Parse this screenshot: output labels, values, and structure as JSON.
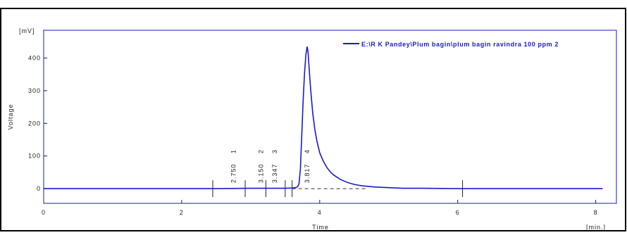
{
  "chart_data": {
    "type": "line",
    "title": "",
    "xlabel": "Time",
    "ylabel": "Voltage",
    "x_unit": "[min.]",
    "y_unit": "[mV]",
    "xlim": [
      0,
      8.3
    ],
    "ylim": [
      -45,
      485
    ],
    "x_ticks": [
      0,
      2,
      4,
      6,
      8
    ],
    "y_ticks": [
      0,
      100,
      200,
      300,
      400
    ],
    "x_tick_labels": [
      "0",
      "2",
      "4",
      "6",
      "8"
    ],
    "y_tick_labels": [
      "0",
      "100",
      "200",
      "300",
      "400"
    ],
    "grid": false,
    "legend_position": "top-right",
    "series": [
      {
        "name": "E:\\R K Pandey\\Plum bagin\\plum bagin ravindra 100 ppm 2",
        "color": "#1a1ad0",
        "x": [
          0.0,
          0.5,
          1.0,
          1.5,
          2.0,
          2.5,
          3.0,
          3.3,
          3.5,
          3.6,
          3.65,
          3.68,
          3.7,
          3.72,
          3.74,
          3.76,
          3.78,
          3.8,
          3.817,
          3.83,
          3.85,
          3.87,
          3.9,
          3.93,
          3.96,
          4.0,
          4.05,
          4.1,
          4.15,
          4.2,
          4.3,
          4.4,
          4.5,
          4.6,
          4.8,
          5.0,
          5.2,
          5.5,
          6.0,
          6.5,
          7.0,
          7.5,
          8.1
        ],
        "y": [
          0,
          0,
          0,
          0,
          0,
          0,
          1,
          1,
          1,
          2,
          3,
          6,
          15,
          60,
          160,
          270,
          355,
          410,
          435,
          420,
          360,
          300,
          230,
          180,
          145,
          110,
          85,
          66,
          52,
          42,
          28,
          19,
          13,
          9,
          5,
          3,
          1,
          1,
          0,
          0,
          0,
          0,
          0
        ]
      }
    ],
    "baseline": {
      "x": [
        3.6,
        4.7
      ],
      "y": [
        0,
        0
      ]
    },
    "peak_labels": [
      {
        "x": 2.75,
        "label": "2.750",
        "number": "1"
      },
      {
        "x": 3.15,
        "label": "3.150",
        "number": "2"
      },
      {
        "x": 3.347,
        "label": "3.347",
        "number": "3"
      },
      {
        "x": 3.817,
        "label": "3.817",
        "number": "4"
      }
    ],
    "event_marks": [
      2.45,
      2.92,
      3.22,
      3.5,
      3.6,
      6.07
    ]
  }
}
